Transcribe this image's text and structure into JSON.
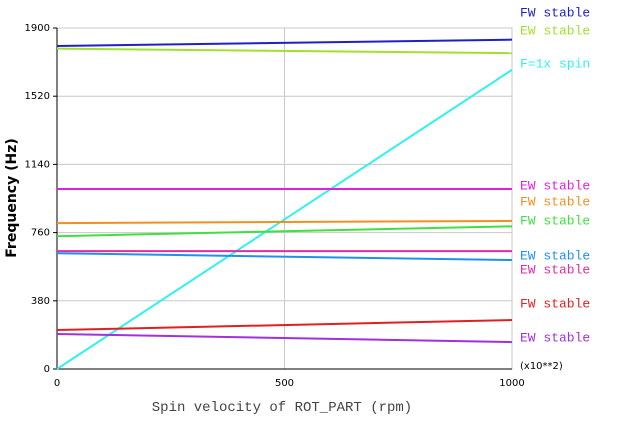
{
  "chart_data": {
    "type": "line",
    "x_label": "Spin velocity of ROT_PART (rpm)",
    "y_label": "Frequency (Hz)",
    "x_multiplier": "(x10**2)",
    "x": [
      0,
      1000
    ],
    "xlim": [
      0,
      1000
    ],
    "xticks": [
      0,
      500,
      1000
    ],
    "ylim": [
      0,
      1900
    ],
    "yticks": [
      0,
      380,
      760,
      1140,
      1520,
      1900
    ],
    "grid": true,
    "series": [
      {
        "name": "FW stable",
        "color": "#2020c8",
        "values": [
          1800,
          1835
        ]
      },
      {
        "name": "EW stable",
        "color": "#a0e030",
        "values": [
          1785,
          1760
        ]
      },
      {
        "name": "F=1x spin",
        "color": "#30f0f0",
        "values": [
          0,
          1667
        ]
      },
      {
        "name": "EW stable",
        "color": "#e020e0",
        "values": [
          1003,
          1003
        ]
      },
      {
        "name": "FW stable",
        "color": "#f09020",
        "values": [
          813,
          825
        ]
      },
      {
        "name": "FW stable",
        "color": "#40e040",
        "values": [
          740,
          795
        ]
      },
      {
        "name": "EW stable",
        "color": "#2090f0",
        "values": [
          645,
          607
        ]
      },
      {
        "name": "EW stable",
        "color": "#e02ca0",
        "values": [
          657,
          657
        ]
      },
      {
        "name": "FW stable",
        "color": "#e02020",
        "values": [
          217,
          273
        ]
      },
      {
        "name": "EW stable",
        "color": "#a030e0",
        "values": [
          195,
          150
        ]
      }
    ]
  }
}
